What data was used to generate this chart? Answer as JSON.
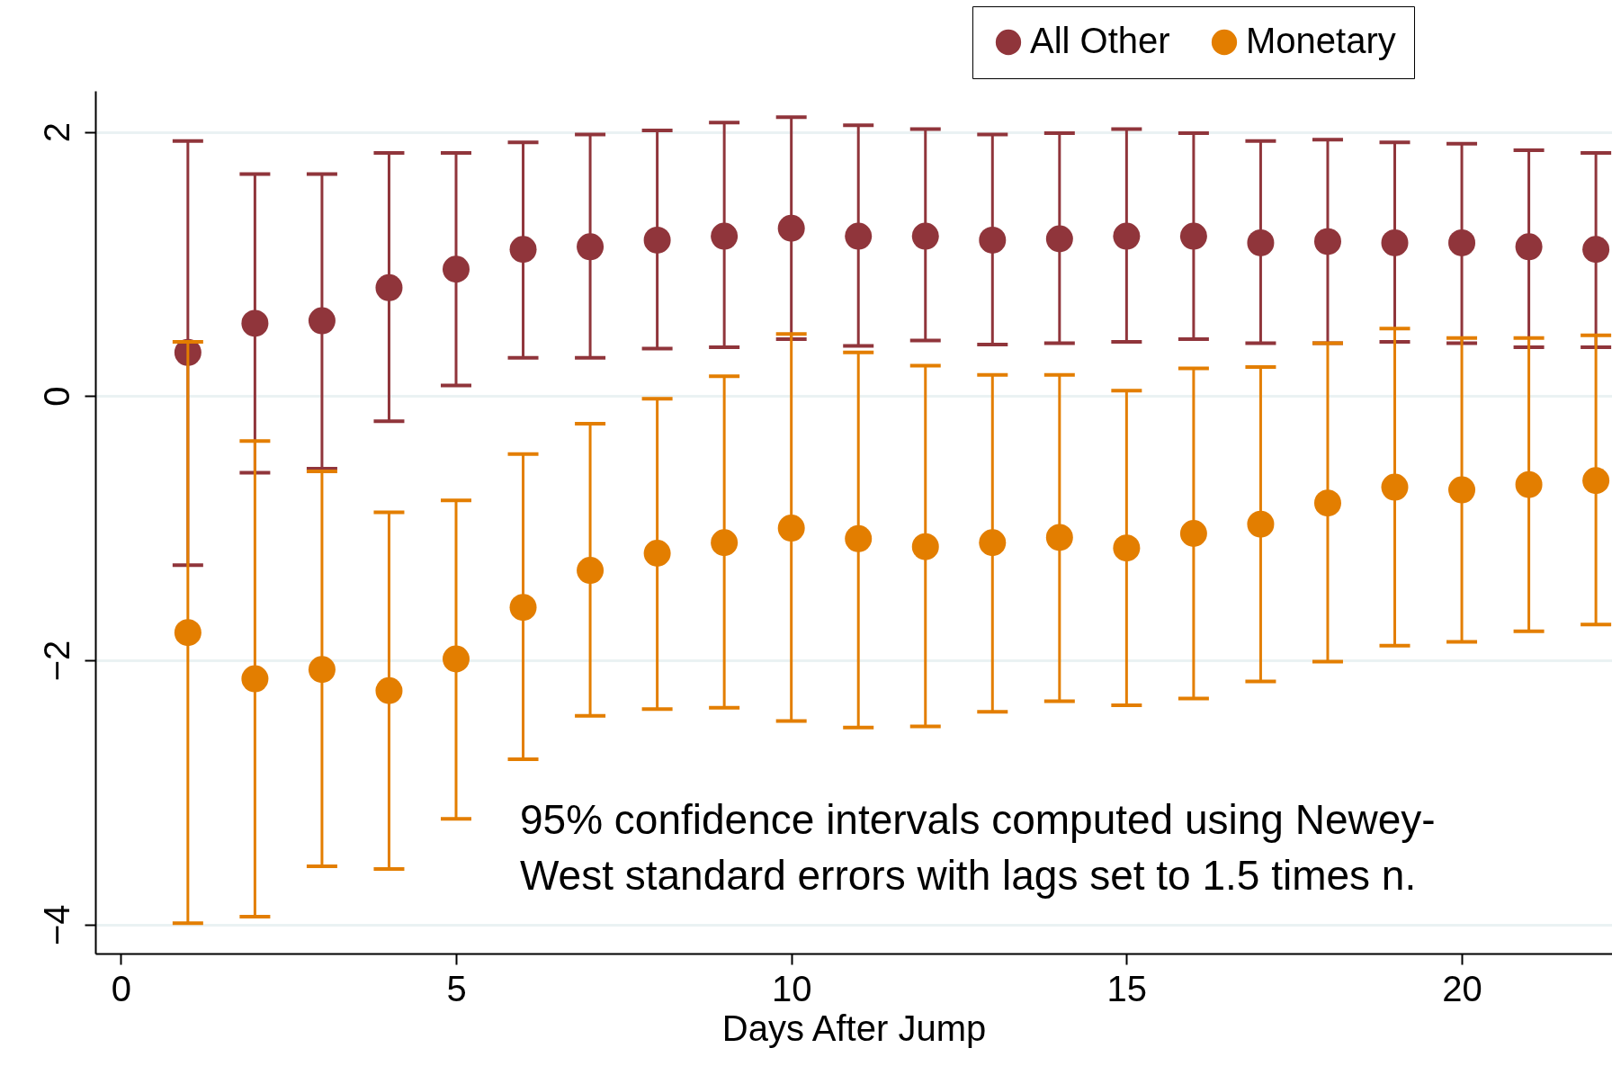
{
  "chart_data": {
    "type": "scatter",
    "xlabel": "Days After Jump",
    "x": [
      1,
      2,
      3,
      4,
      5,
      6,
      7,
      8,
      9,
      10,
      11,
      12,
      13,
      14,
      15,
      16,
      17,
      18,
      19,
      20,
      21,
      22
    ],
    "series": [
      {
        "name": "All Other",
        "color": "#90353b",
        "values": [
          0.33,
          0.55,
          0.57,
          0.82,
          0.96,
          1.11,
          1.13,
          1.18,
          1.21,
          1.27,
          1.21,
          1.21,
          1.18,
          1.19,
          1.21,
          1.21,
          1.16,
          1.17,
          1.16,
          1.16,
          1.13,
          1.11
        ],
        "errors": [
          [
            -1.28,
            1.93
          ],
          [
            -0.58,
            1.68
          ],
          [
            -0.55,
            1.68
          ],
          [
            -0.19,
            1.84
          ],
          [
            0.08,
            1.84
          ],
          [
            0.29,
            1.92
          ],
          [
            0.29,
            1.98
          ],
          [
            0.36,
            2.01
          ],
          [
            0.37,
            2.07
          ],
          [
            0.43,
            2.11
          ],
          [
            0.38,
            2.05
          ],
          [
            0.42,
            2.02
          ],
          [
            0.39,
            1.98
          ],
          [
            0.4,
            1.99
          ],
          [
            0.41,
            2.02
          ],
          [
            0.43,
            1.99
          ],
          [
            0.4,
            1.93
          ],
          [
            0.4,
            1.94
          ],
          [
            0.41,
            1.92
          ],
          [
            0.4,
            1.91
          ],
          [
            0.37,
            1.86
          ],
          [
            0.37,
            1.84
          ]
        ]
      },
      {
        "name": "Monetary",
        "color": "#e37e00",
        "values": [
          -1.79,
          -2.14,
          -2.07,
          -2.23,
          -1.99,
          -1.6,
          -1.32,
          -1.19,
          -1.11,
          -1.0,
          -1.08,
          -1.14,
          -1.11,
          -1.07,
          -1.15,
          -1.04,
          -0.97,
          -0.81,
          -0.69,
          -0.71,
          -0.67,
          -0.64
        ],
        "errors": [
          [
            -3.99,
            0.41
          ],
          [
            -3.94,
            -0.34
          ],
          [
            -3.56,
            -0.57
          ],
          [
            -3.58,
            -0.88
          ],
          [
            -3.2,
            -0.79
          ],
          [
            -2.75,
            -0.44
          ],
          [
            -2.42,
            -0.21
          ],
          [
            -2.37,
            -0.02
          ],
          [
            -2.36,
            0.15
          ],
          [
            -2.46,
            0.47
          ],
          [
            -2.51,
            0.33
          ],
          [
            -2.5,
            0.23
          ],
          [
            -2.39,
            0.16
          ],
          [
            -2.31,
            0.16
          ],
          [
            -2.34,
            0.04
          ],
          [
            -2.29,
            0.21
          ],
          [
            -2.16,
            0.22
          ],
          [
            -2.01,
            0.4
          ],
          [
            -1.89,
            0.51
          ],
          [
            -1.86,
            0.44
          ],
          [
            -1.78,
            0.44
          ],
          [
            -1.73,
            0.46
          ]
        ]
      }
    ],
    "xlim": [
      -0.38,
      22.24
    ],
    "xticks": [
      0,
      5,
      10,
      15,
      20
    ],
    "ylim": [
      -4.22,
      2.31
    ],
    "yticks": [
      -4,
      -2,
      0,
      2
    ],
    "grid": "y",
    "legend": "top right",
    "marker": "circle",
    "annotations": [
      "95% confidence intervals computed using Newey-\nWest standard errors with lags set to 1.5 times n."
    ]
  }
}
